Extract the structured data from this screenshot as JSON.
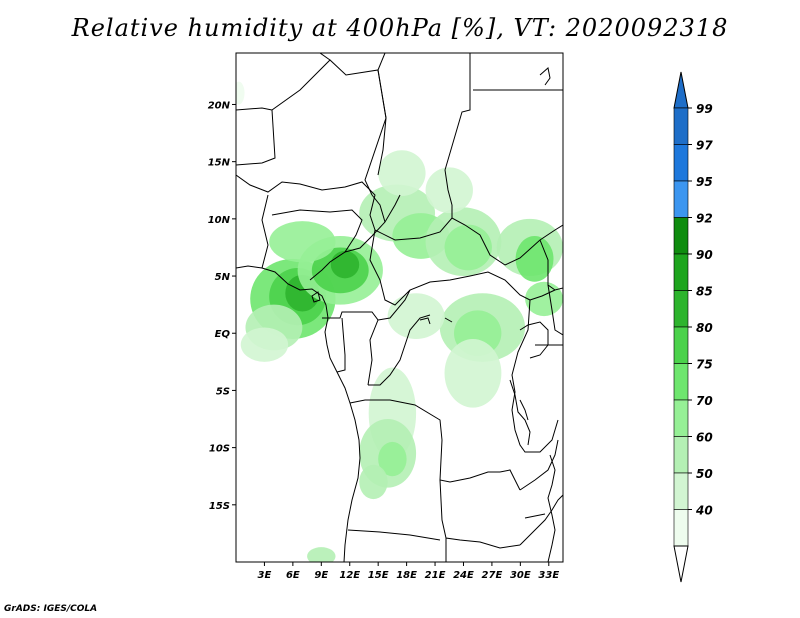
{
  "title": "Relative humidity at 400hPa [%], VT: 2020092318",
  "credit": "GrADS: IGES/COLA",
  "map": {
    "lat_range": [
      -20,
      24.5
    ],
    "lon_range": [
      0,
      34.5
    ],
    "lat_ticks": [
      {
        "value": 20,
        "label": "20N"
      },
      {
        "value": 15,
        "label": "15N"
      },
      {
        "value": 10,
        "label": "10N"
      },
      {
        "value": 5,
        "label": "5N"
      },
      {
        "value": 0,
        "label": "EQ"
      },
      {
        "value": -5,
        "label": "5S"
      },
      {
        "value": -10,
        "label": "10S"
      },
      {
        "value": -15,
        "label": "15S"
      }
    ],
    "lon_ticks": [
      {
        "value": 3,
        "label": "3E"
      },
      {
        "value": 6,
        "label": "6E"
      },
      {
        "value": 9,
        "label": "9E"
      },
      {
        "value": 12,
        "label": "12E"
      },
      {
        "value": 15,
        "label": "15E"
      },
      {
        "value": 18,
        "label": "18E"
      },
      {
        "value": 21,
        "label": "21E"
      },
      {
        "value": 24,
        "label": "24E"
      },
      {
        "value": 27,
        "label": "27E"
      },
      {
        "value": 30,
        "label": "30E"
      },
      {
        "value": 33,
        "label": "33E"
      }
    ]
  },
  "colorbar": {
    "levels": [
      {
        "label": "99",
        "color": "#1e6ec8"
      },
      {
        "label": "97",
        "color": "#1e78dc"
      },
      {
        "label": "95",
        "color": "#3c96f0"
      },
      {
        "label": "92",
        "color": "#0f8c0f"
      },
      {
        "label": "90",
        "color": "#1ea51e"
      },
      {
        "label": "85",
        "color": "#2db42d"
      },
      {
        "label": "80",
        "color": "#4bd24b"
      },
      {
        "label": "75",
        "color": "#6ee66e"
      },
      {
        "label": "70",
        "color": "#96f096"
      },
      {
        "label": "60",
        "color": "#b4f0b4"
      },
      {
        "label": "50",
        "color": "#d2f5d2"
      },
      {
        "label": "40",
        "color": "#eefcee"
      }
    ],
    "top_arrow_color": "#1e6ec8",
    "bottom_arrow_color": "#ffffff"
  },
  "humidity_patches": [
    {
      "lon": 6.0,
      "lat": 3.0,
      "rx": 4.5,
      "ry": 3.5,
      "level": 75
    },
    {
      "lon": 6.5,
      "lat": 3.2,
      "rx": 3.0,
      "ry": 2.5,
      "level": 80
    },
    {
      "lon": 7.0,
      "lat": 3.5,
      "rx": 1.8,
      "ry": 1.6,
      "level": 85
    },
    {
      "lon": 4.0,
      "lat": 0.5,
      "rx": 3.0,
      "ry": 2.0,
      "level": 60
    },
    {
      "lon": 3.0,
      "lat": -1.0,
      "rx": 2.5,
      "ry": 1.5,
      "level": 50
    },
    {
      "lon": 11.0,
      "lat": 5.5,
      "rx": 4.5,
      "ry": 3.0,
      "level": 70
    },
    {
      "lon": 11.0,
      "lat": 5.5,
      "rx": 3.0,
      "ry": 2.0,
      "level": 80
    },
    {
      "lon": 11.5,
      "lat": 6.0,
      "rx": 1.5,
      "ry": 1.2,
      "level": 85
    },
    {
      "lon": 7.0,
      "lat": 8.0,
      "rx": 3.5,
      "ry": 1.8,
      "level": 70
    },
    {
      "lon": 17.0,
      "lat": 10.5,
      "rx": 4.0,
      "ry": 2.5,
      "level": 60
    },
    {
      "lon": 19.5,
      "lat": 8.5,
      "rx": 3.0,
      "ry": 2.0,
      "level": 70
    },
    {
      "lon": 17.5,
      "lat": 14.0,
      "rx": 2.5,
      "ry": 2.0,
      "level": 50
    },
    {
      "lon": 24.0,
      "lat": 8.0,
      "rx": 4.0,
      "ry": 3.0,
      "level": 60
    },
    {
      "lon": 24.5,
      "lat": 7.5,
      "rx": 2.5,
      "ry": 2.0,
      "level": 70
    },
    {
      "lon": 22.5,
      "lat": 12.5,
      "rx": 2.5,
      "ry": 2.0,
      "level": 50
    },
    {
      "lon": 31.0,
      "lat": 7.5,
      "rx": 3.5,
      "ry": 2.5,
      "level": 60
    },
    {
      "lon": 31.5,
      "lat": 6.5,
      "rx": 2.0,
      "ry": 2.0,
      "level": 75
    },
    {
      "lon": 32.5,
      "lat": 3.0,
      "rx": 2.0,
      "ry": 1.5,
      "level": 70
    },
    {
      "lon": 26.0,
      "lat": 0.5,
      "rx": 4.5,
      "ry": 3.0,
      "level": 60
    },
    {
      "lon": 25.5,
      "lat": 0.0,
      "rx": 2.5,
      "ry": 2.0,
      "level": 70
    },
    {
      "lon": 25.0,
      "lat": -3.5,
      "rx": 3.0,
      "ry": 3.0,
      "level": 50
    },
    {
      "lon": 19.0,
      "lat": 1.5,
      "rx": 3.0,
      "ry": 2.0,
      "level": 50
    },
    {
      "lon": 16.5,
      "lat": -7.0,
      "rx": 2.5,
      "ry": 4.0,
      "level": 50
    },
    {
      "lon": 16.0,
      "lat": -10.5,
      "rx": 3.0,
      "ry": 3.0,
      "level": 60
    },
    {
      "lon": 16.5,
      "lat": -11.0,
      "rx": 1.5,
      "ry": 1.5,
      "level": 70
    },
    {
      "lon": 14.5,
      "lat": -13.0,
      "rx": 1.5,
      "ry": 1.5,
      "level": 60
    },
    {
      "lon": 9.0,
      "lat": -19.5,
      "rx": 1.5,
      "ry": 0.8,
      "level": 60
    },
    {
      "lon": 0.3,
      "lat": 21.0,
      "rx": 0.6,
      "ry": 1.0,
      "level": 40
    }
  ]
}
